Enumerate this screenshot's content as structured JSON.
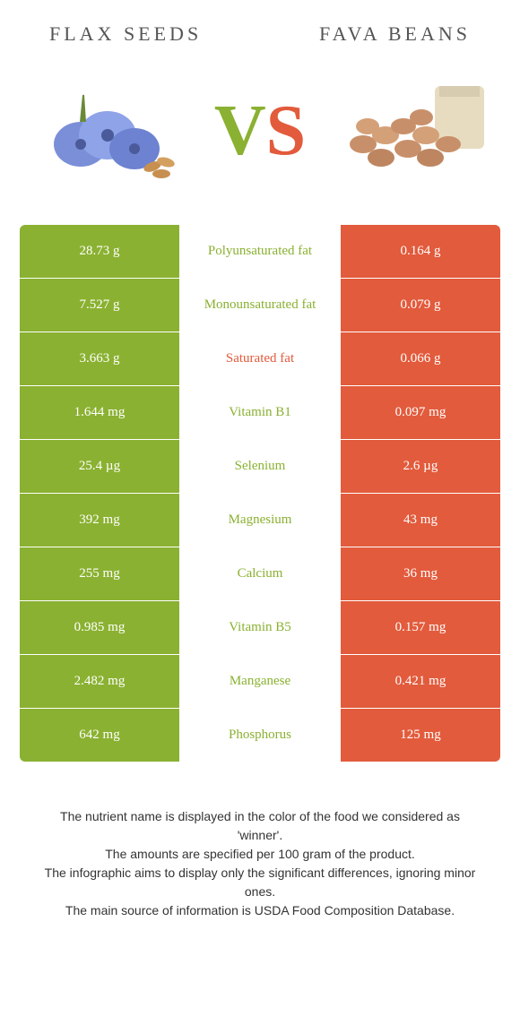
{
  "colors": {
    "green": "#8ab131",
    "orange": "#e25b3c",
    "title": "#555555",
    "footer": "#333333"
  },
  "header": {
    "left": "Flax seeds",
    "right": "Fava beans"
  },
  "vs": {
    "v": "V",
    "s": "S"
  },
  "rows": [
    {
      "left": "28.73 g",
      "mid": "Polyunsaturated fat",
      "right": "0.164 g",
      "winner": "left"
    },
    {
      "left": "7.527 g",
      "mid": "Monounsaturated fat",
      "right": "0.079 g",
      "winner": "left"
    },
    {
      "left": "3.663 g",
      "mid": "Saturated fat",
      "right": "0.066 g",
      "winner": "right"
    },
    {
      "left": "1.644 mg",
      "mid": "Vitamin B1",
      "right": "0.097 mg",
      "winner": "left"
    },
    {
      "left": "25.4 µg",
      "mid": "Selenium",
      "right": "2.6 µg",
      "winner": "left"
    },
    {
      "left": "392 mg",
      "mid": "Magnesium",
      "right": "43 mg",
      "winner": "left"
    },
    {
      "left": "255 mg",
      "mid": "Calcium",
      "right": "36 mg",
      "winner": "left"
    },
    {
      "left": "0.985 mg",
      "mid": "Vitamin B5",
      "right": "0.157 mg",
      "winner": "left"
    },
    {
      "left": "2.482 mg",
      "mid": "Manganese",
      "right": "0.421 mg",
      "winner": "left"
    },
    {
      "left": "642 mg",
      "mid": "Phosphorus",
      "right": "125 mg",
      "winner": "left"
    }
  ],
  "footer": {
    "l1": "The nutrient name is displayed in the color of the food we considered as 'winner'.",
    "l2": "The amounts are specified per 100 gram of the product.",
    "l3": "The infographic aims to display only the significant differences, ignoring minor ones.",
    "l4": "The main source of information is USDA Food Composition Database."
  }
}
